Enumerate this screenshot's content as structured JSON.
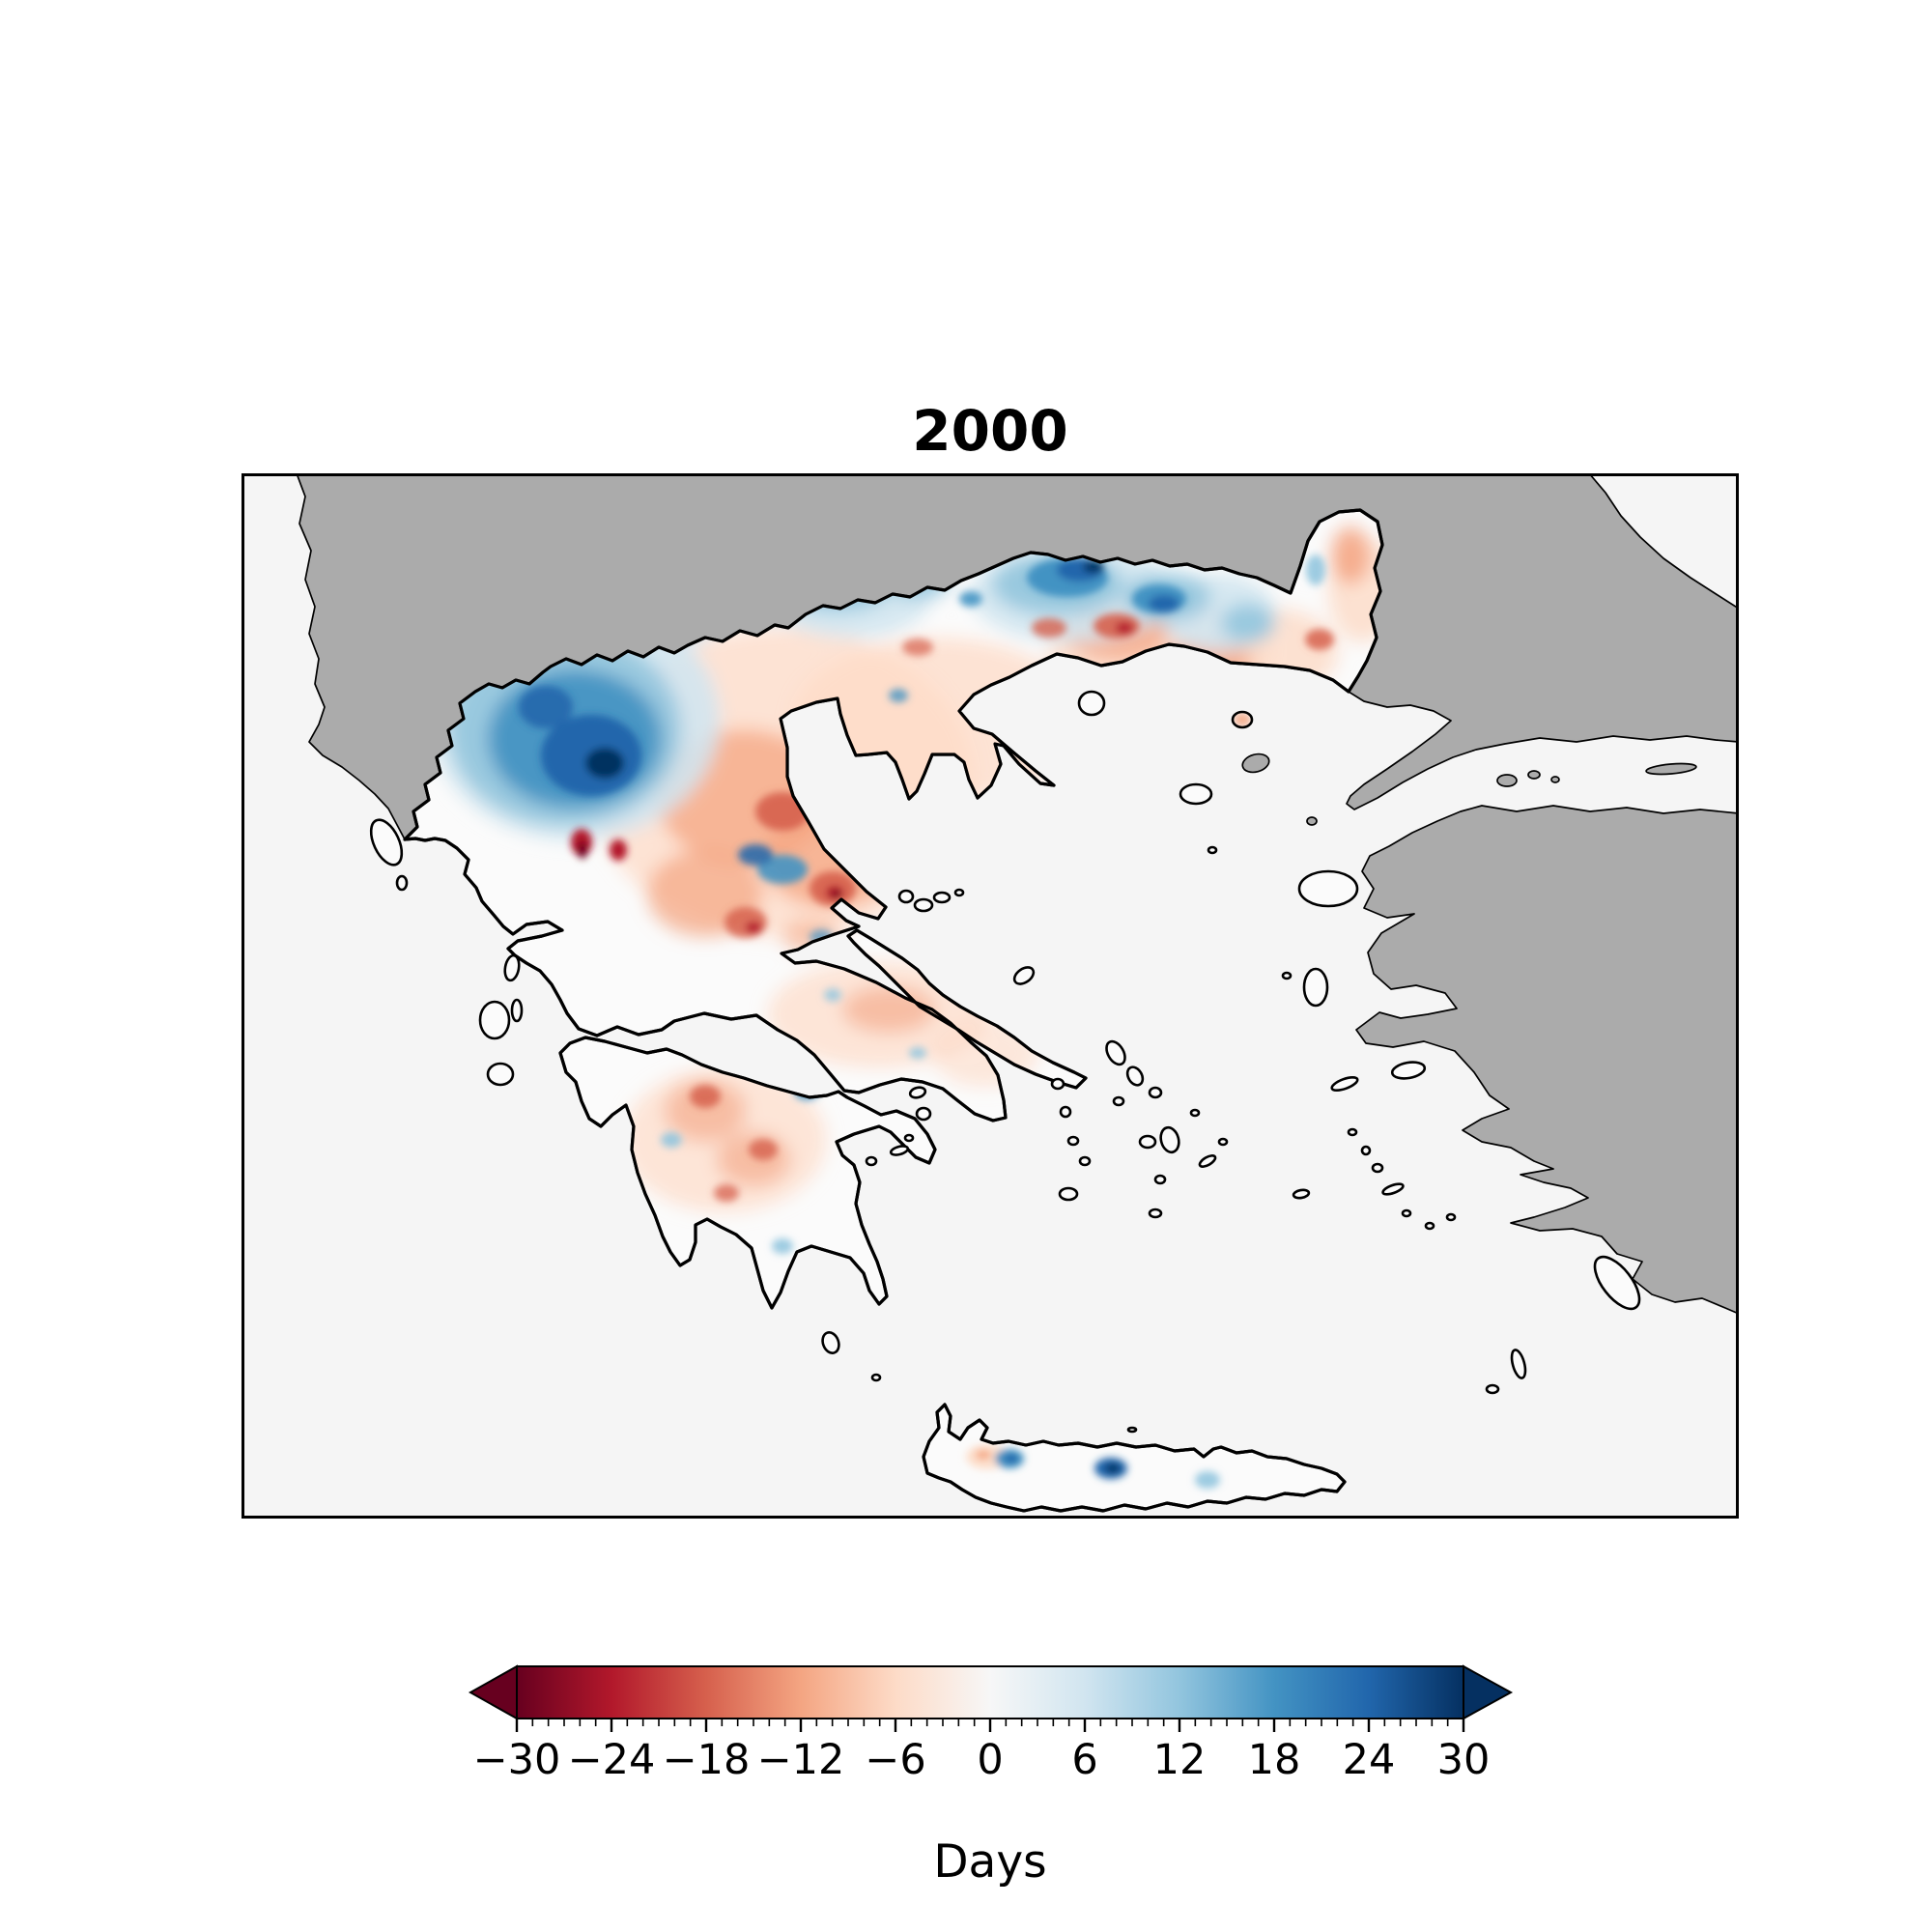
{
  "title": "2000",
  "map": {
    "sea_color": "#f5f5f5",
    "masked_land_color": "#ababab",
    "greece_fill": "#fbfbfb",
    "coastline_color": "#000000"
  },
  "colorbar": {
    "label": "Days",
    "min": -30,
    "max": 30,
    "major_step": 6,
    "minor_step": 1,
    "tick_labels": [
      "−30",
      "−24",
      "−18",
      "−12",
      "−6",
      "0",
      "6",
      "12",
      "18",
      "24",
      "30"
    ],
    "gradient": [
      "#67001f",
      "#b2182b",
      "#d6604d",
      "#f4a582",
      "#fddbc7",
      "#f7f7f7",
      "#d1e5f0",
      "#92c5de",
      "#4393c3",
      "#2166ac",
      "#053061"
    ]
  },
  "chart_data": {
    "type": "heatmap",
    "title": "2000",
    "colorbar_label": "Days",
    "colormap": "RdBu",
    "value_range": [
      -30,
      30
    ],
    "tick_values": [
      -30,
      -24,
      -18,
      -12,
      -6,
      0,
      6,
      12,
      18,
      24,
      30
    ],
    "legend_position": "bottom",
    "regions": [
      {
        "area": "NW Greece (Epirus / W Macedonia)",
        "anomaly_days": 18
      },
      {
        "area": "Dark cores inside NW patch",
        "anomaly_days": 26
      },
      {
        "area": "Northern border band (Macedonia–Thrace frontier)",
        "anomaly_days": 12
      },
      {
        "area": "Navy pockets on northern border",
        "anomaly_days": 28
      },
      {
        "area": "Thessaly / Central Macedonia lowlands",
        "anomaly_days": -6
      },
      {
        "area": "Local dark-red spots (Epirus south, Thessaly)",
        "anomaly_days": -26
      },
      {
        "area": "Thrace coastal plain",
        "anomaly_days": -6
      },
      {
        "area": "NE Evros hook",
        "anomaly_days": -8
      },
      {
        "area": "Attica / Boeotia / Euboea",
        "anomaly_days": -4
      },
      {
        "area": "Northern Peloponnese patches",
        "anomaly_days": -6
      },
      {
        "area": "Small blue spots (Peloponnese, Boeotia)",
        "anomaly_days": 8
      },
      {
        "area": "Crete west spot",
        "anomaly_days": 14
      },
      {
        "area": "Crete central spot",
        "anomaly_days": 20
      },
      {
        "area": "Crete east spot",
        "anomaly_days": 8
      },
      {
        "area": "Samothraki island",
        "anomaly_days": -8
      },
      {
        "area": "Aegean islands (most)",
        "anomaly_days": 0
      }
    ]
  }
}
